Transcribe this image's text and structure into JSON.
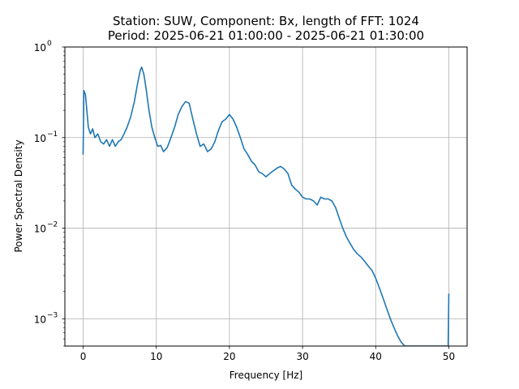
{
  "chart_data": {
    "type": "line",
    "title_line1": "Station: SUW, Component: Bx, length of FFT: 1024",
    "title_line2": "Period: 2025-06-21 01:00:00 - 2025-06-21 01:30:00",
    "xlabel": "Frequency [Hz]",
    "ylabel": "Power Spectral Density",
    "xlim": [
      -2.5,
      52.5
    ],
    "ylim": [
      0.0005,
      1
    ],
    "yscale": "log",
    "grid": true,
    "xticks": [
      {
        "value": 0,
        "label": "0"
      },
      {
        "value": 10,
        "label": "10"
      },
      {
        "value": 20,
        "label": "20"
      },
      {
        "value": 30,
        "label": "30"
      },
      {
        "value": 40,
        "label": "40"
      },
      {
        "value": 50,
        "label": "50"
      }
    ],
    "yticks": [
      {
        "value": 0.001,
        "base": "10",
        "exp": "−3"
      },
      {
        "value": 0.01,
        "base": "10",
        "exp": "−2"
      },
      {
        "value": 0.1,
        "base": "10",
        "exp": "−1"
      },
      {
        "value": 1,
        "base": "10",
        "exp": "0"
      }
    ],
    "line_color": "#1f77b4",
    "series": [
      {
        "x": [
          0,
          0.1,
          0.3,
          0.5,
          0.7,
          1.0,
          1.3,
          1.6,
          2.0,
          2.4,
          2.8,
          3.2,
          3.6,
          4.0,
          4.4,
          4.8,
          5.2,
          5.6,
          6.0,
          6.5,
          7.0,
          7.4,
          7.8,
          8.0,
          8.3,
          8.6,
          9.0,
          9.4,
          9.8,
          10.2,
          10.6,
          11.0,
          11.5,
          12.0,
          12.5,
          13.0,
          13.5,
          14.0,
          14.5,
          15.0,
          15.5,
          16.0,
          16.5,
          17.0,
          17.5,
          18.0,
          18.5,
          19.0,
          19.5,
          20.0,
          20.5,
          21.0,
          21.5,
          22.0,
          22.5,
          23.0,
          23.5,
          24.0,
          24.5,
          25.0,
          25.5,
          26.0,
          26.5,
          27.0,
          27.5,
          28.0,
          28.5,
          29.0,
          29.5,
          30.0,
          30.5,
          31.0,
          31.5,
          32.0,
          32.5,
          33.0,
          33.5,
          34.0,
          34.5,
          35.0,
          35.5,
          36.0,
          36.5,
          37.0,
          37.5,
          38.0,
          38.5,
          39.0,
          39.5,
          40.0,
          40.5,
          41.0,
          41.5,
          42.0,
          42.5,
          43.0,
          43.5,
          44.0,
          49.9,
          50.0
        ],
        "y": [
          0.065,
          0.33,
          0.3,
          0.2,
          0.13,
          0.11,
          0.125,
          0.1,
          0.11,
          0.09,
          0.085,
          0.095,
          0.08,
          0.095,
          0.08,
          0.09,
          0.095,
          0.11,
          0.13,
          0.17,
          0.25,
          0.38,
          0.55,
          0.6,
          0.5,
          0.35,
          0.2,
          0.13,
          0.1,
          0.08,
          0.082,
          0.07,
          0.078,
          0.1,
          0.13,
          0.18,
          0.22,
          0.25,
          0.24,
          0.16,
          0.11,
          0.08,
          0.085,
          0.07,
          0.075,
          0.09,
          0.12,
          0.15,
          0.16,
          0.18,
          0.16,
          0.13,
          0.1,
          0.075,
          0.065,
          0.055,
          0.05,
          0.042,
          0.04,
          0.037,
          0.04,
          0.043,
          0.046,
          0.048,
          0.045,
          0.04,
          0.03,
          0.027,
          0.025,
          0.022,
          0.021,
          0.021,
          0.02,
          0.018,
          0.022,
          0.021,
          0.021,
          0.02,
          0.017,
          0.013,
          0.01,
          0.008,
          0.0068,
          0.0058,
          0.0052,
          0.0048,
          0.0043,
          0.0038,
          0.0034,
          0.0028,
          0.0022,
          0.0017,
          0.0013,
          0.001,
          0.0008,
          0.00065,
          0.00055,
          0.0005,
          0.0005,
          0.0019
        ]
      }
    ]
  }
}
